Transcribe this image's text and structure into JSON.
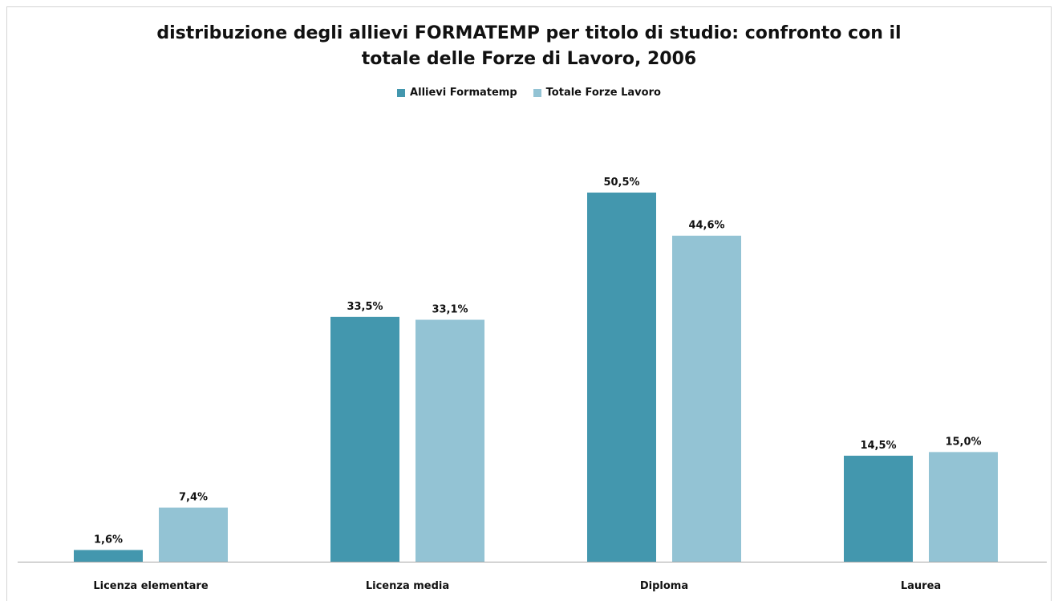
{
  "chart_data": {
    "type": "bar",
    "title_line1": "distribuzione degli allievi FORMATEMP per titolo di studio: confronto con il",
    "title_line2": "totale delle Forze di Lavoro, 2006",
    "categories": [
      "Licenza elementare",
      "Licenza media",
      "Diploma",
      "Laurea"
    ],
    "series": [
      {
        "name": "Allievi Formatemp",
        "color": "#4397ae",
        "values": [
          1.6,
          33.5,
          50.5,
          14.5
        ],
        "labels": [
          "1,6%",
          "33,5%",
          "50,5%",
          "14,5%"
        ]
      },
      {
        "name": "Totale Forze Lavoro",
        "color": "#93c3d4",
        "values": [
          7.4,
          33.1,
          44.6,
          15.0
        ],
        "labels": [
          "7,4%",
          "33,1%",
          "44,6%",
          "15,0%"
        ]
      }
    ],
    "ylim": [
      0,
      55
    ],
    "legend_position": "top",
    "grid": false
  }
}
